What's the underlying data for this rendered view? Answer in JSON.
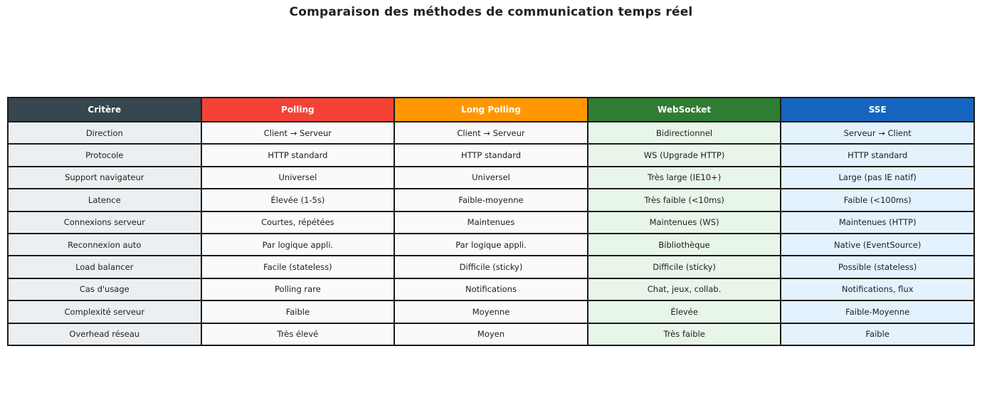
{
  "title": "Comparaison des méthodes de communication temps réel",
  "table": {
    "border_color": "#1b1b1b",
    "columns": [
      {
        "label": "Critère",
        "header_bg": "#37474F",
        "cell_bg": "#ECEFF1"
      },
      {
        "label": "Polling",
        "header_bg": "#F44336",
        "cell_bg": "#FAFAFA"
      },
      {
        "label": "Long Polling",
        "header_bg": "#FF9800",
        "cell_bg": "#FAFAFA"
      },
      {
        "label": "WebSocket",
        "header_bg": "#2E7D32",
        "cell_bg": "#E8F5E9"
      },
      {
        "label": "SSE",
        "header_bg": "#1565C0",
        "cell_bg": "#E3F2FD"
      }
    ],
    "rows": [
      [
        "Direction",
        "Client → Serveur",
        "Client → Serveur",
        "Bidirectionnel",
        "Serveur → Client"
      ],
      [
        "Protocole",
        "HTTP standard",
        "HTTP standard",
        "WS (Upgrade HTTP)",
        "HTTP standard"
      ],
      [
        "Support navigateur",
        "Universel",
        "Universel",
        "Très large (IE10+)",
        "Large (pas IE natif)"
      ],
      [
        "Latence",
        "Élevée (1-5s)",
        "Faible-moyenne",
        "Très faible (<10ms)",
        "Faible (<100ms)"
      ],
      [
        "Connexions serveur",
        "Courtes, répétées",
        "Maintenues",
        "Maintenues (WS)",
        "Maintenues (HTTP)"
      ],
      [
        "Reconnexion auto",
        "Par logique appli.",
        "Par logique appli.",
        "Bibliothèque",
        "Native (EventSource)"
      ],
      [
        "Load balancer",
        "Facile (stateless)",
        "Difficile (sticky)",
        "Difficile (sticky)",
        "Possible (stateless)"
      ],
      [
        "Cas d'usage",
        "Polling rare",
        "Notifications",
        "Chat, jeux, collab.",
        "Notifications, flux"
      ],
      [
        "Complexité serveur",
        "Faible",
        "Moyenne",
        "Élevée",
        "Faible-Moyenne"
      ],
      [
        "Overhead réseau",
        "Très élevé",
        "Moyen",
        "Très faible",
        "Faible"
      ]
    ]
  }
}
